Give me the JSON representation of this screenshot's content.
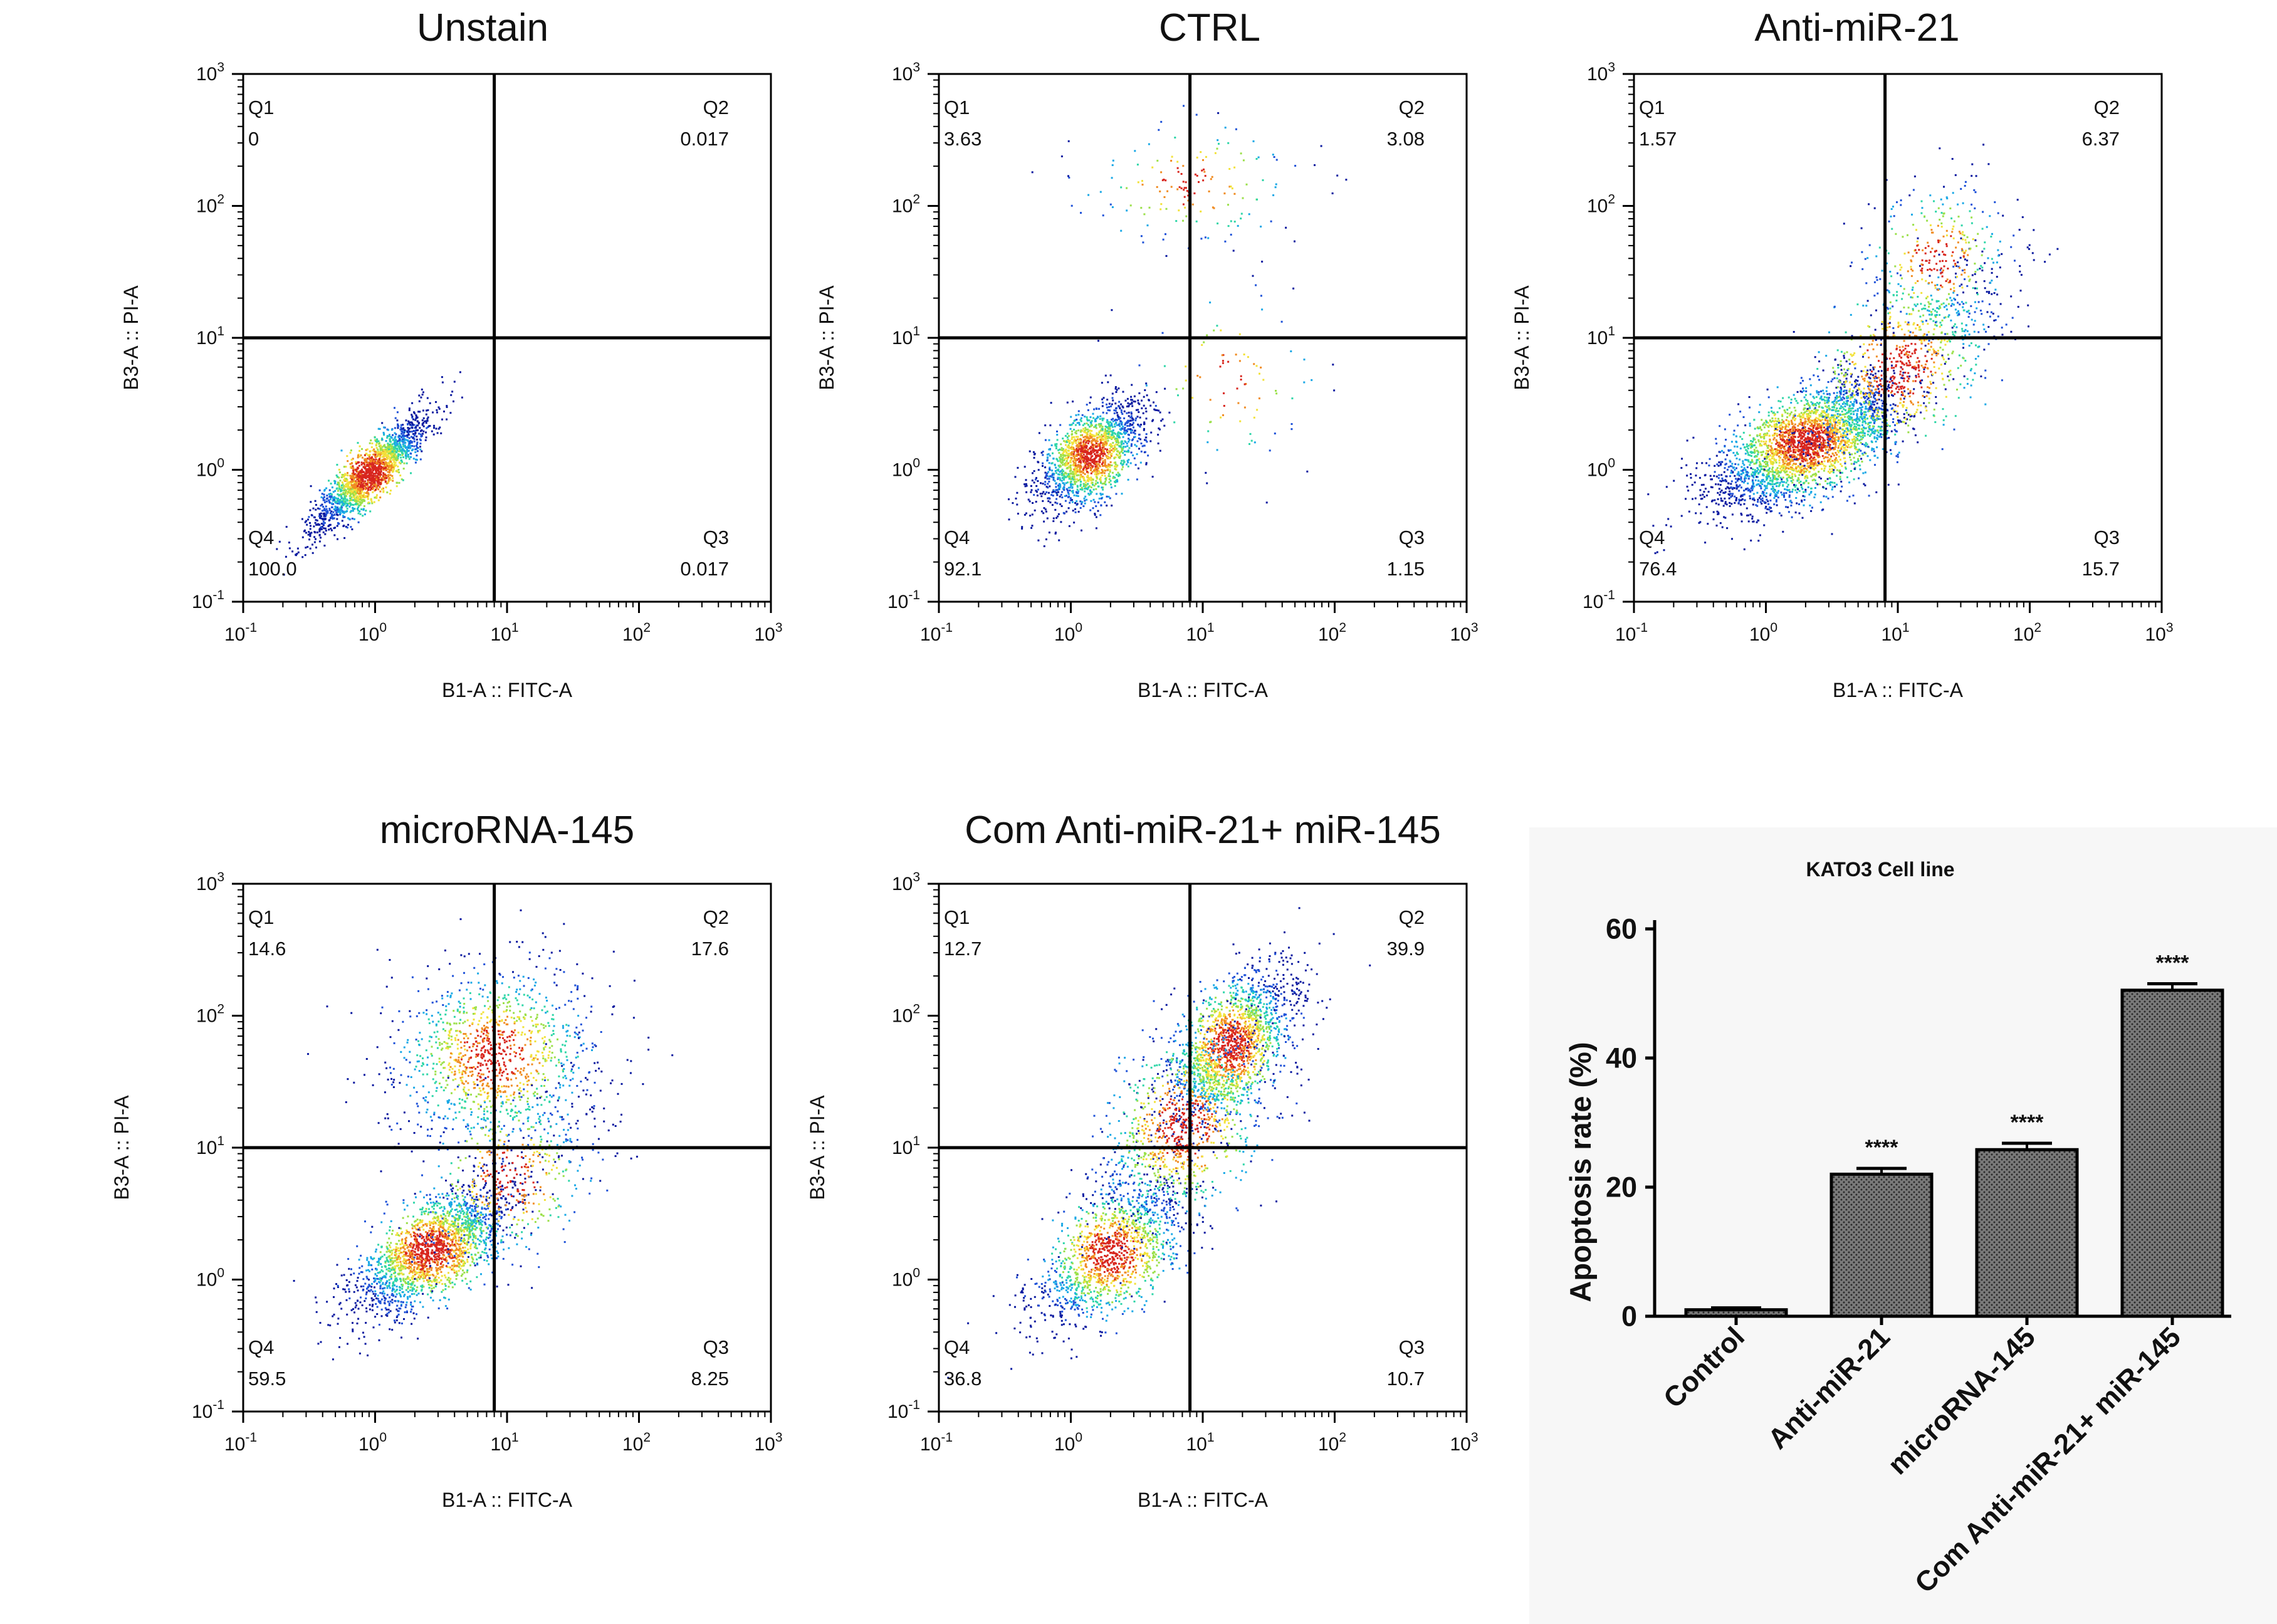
{
  "chart_data": [
    {
      "type": "scatter",
      "title": "Unstain",
      "xlabel": "B1-A :: FITC-A",
      "ylabel": "B3-A :: PI-A",
      "xlim": [
        0.1,
        1000
      ],
      "ylim": [
        0.1,
        1000
      ],
      "scale": "log",
      "gate": {
        "x": 8,
        "y": 10
      },
      "quadrants": [
        {
          "name": "Q1",
          "value": "0",
          "position": "top-left"
        },
        {
          "name": "Q2",
          "value": "0.017",
          "position": "top-right"
        },
        {
          "name": "Q3",
          "value": "0.017",
          "position": "bottom-right"
        },
        {
          "name": "Q4",
          "value": "100.0",
          "position": "bottom-left"
        }
      ],
      "clusters": [
        {
          "center": [
            0.9,
            0.95
          ],
          "spread": [
            0.22,
            0.22
          ],
          "rho": 0.88,
          "count": 1900
        }
      ]
    },
    {
      "type": "scatter",
      "title": "CTRL",
      "xlabel": "B1-A :: FITC-A",
      "ylabel": "B3-A :: PI-A",
      "xlim": [
        0.1,
        1000
      ],
      "ylim": [
        0.1,
        1000
      ],
      "scale": "log",
      "gate": {
        "x": 8,
        "y": 10
      },
      "quadrants": [
        {
          "name": "Q1",
          "value": "3.63",
          "position": "top-left"
        },
        {
          "name": "Q2",
          "value": "3.08",
          "position": "top-right"
        },
        {
          "name": "Q3",
          "value": "1.15",
          "position": "bottom-right"
        },
        {
          "name": "Q4",
          "value": "92.1",
          "position": "bottom-left"
        }
      ],
      "clusters": [
        {
          "center": [
            1.4,
            1.3
          ],
          "spread": [
            0.2,
            0.2
          ],
          "rho": 0.55,
          "count": 1700
        },
        {
          "center": [
            8,
            150
          ],
          "spread": [
            0.45,
            0.25
          ],
          "rho": 0.0,
          "count": 160
        },
        {
          "center": [
            15,
            5
          ],
          "spread": [
            0.35,
            0.35
          ],
          "rho": 0.2,
          "count": 90
        }
      ]
    },
    {
      "type": "scatter",
      "title": "Anti-miR-21",
      "xlabel": "B1-A :: FITC-A",
      "ylabel": "B3-A :: PI-A",
      "xlim": [
        0.1,
        1000
      ],
      "ylim": [
        0.1,
        1000
      ],
      "scale": "log",
      "gate": {
        "x": 8,
        "y": 10
      },
      "quadrants": [
        {
          "name": "Q1",
          "value": "1.57",
          "position": "top-left"
        },
        {
          "name": "Q2",
          "value": "6.37",
          "position": "top-right"
        },
        {
          "name": "Q3",
          "value": "15.7",
          "position": "bottom-right"
        },
        {
          "name": "Q4",
          "value": "76.4",
          "position": "bottom-left"
        }
      ],
      "clusters": [
        {
          "center": [
            2,
            1.6
          ],
          "spread": [
            0.35,
            0.25
          ],
          "rho": 0.65,
          "count": 2800
        },
        {
          "center": [
            10,
            6
          ],
          "spread": [
            0.4,
            0.4
          ],
          "rho": 0.7,
          "count": 900
        },
        {
          "center": [
            20,
            40
          ],
          "spread": [
            0.3,
            0.3
          ],
          "rho": 0.3,
          "count": 350
        }
      ]
    },
    {
      "type": "scatter",
      "title": "microRNA-145",
      "xlabel": "B1-A :: FITC-A",
      "ylabel": "B3-A :: PI-A",
      "xlim": [
        0.1,
        1000
      ],
      "ylim": [
        0.1,
        1000
      ],
      "scale": "log",
      "gate": {
        "x": 8,
        "y": 10
      },
      "quadrants": [
        {
          "name": "Q1",
          "value": "14.6",
          "position": "top-left"
        },
        {
          "name": "Q2",
          "value": "17.6",
          "position": "top-right"
        },
        {
          "name": "Q3",
          "value": "8.25",
          "position": "bottom-right"
        },
        {
          "name": "Q4",
          "value": "59.5",
          "position": "bottom-left"
        }
      ],
      "clusters": [
        {
          "center": [
            2.6,
            1.7
          ],
          "spread": [
            0.3,
            0.25
          ],
          "rho": 0.7,
          "count": 2000
        },
        {
          "center": [
            8,
            50
          ],
          "spread": [
            0.4,
            0.35
          ],
          "rho": 0.1,
          "count": 1200
        },
        {
          "center": [
            10,
            6
          ],
          "spread": [
            0.35,
            0.35
          ],
          "rho": 0.5,
          "count": 500
        }
      ]
    },
    {
      "type": "scatter",
      "title": "Com Anti-miR-21+ miR-145",
      "xlabel": "B1-A :: FITC-A",
      "ylabel": "B3-A :: PI-A",
      "xlim": [
        0.1,
        1000
      ],
      "ylim": [
        0.1,
        1000
      ],
      "scale": "log",
      "gate": {
        "x": 8,
        "y": 10
      },
      "quadrants": [
        {
          "name": "Q1",
          "value": "12.7",
          "position": "top-left"
        },
        {
          "name": "Q2",
          "value": "39.9",
          "position": "top-right"
        },
        {
          "name": "Q3",
          "value": "10.7",
          "position": "bottom-right"
        },
        {
          "name": "Q4",
          "value": "36.8",
          "position": "bottom-left"
        }
      ],
      "clusters": [
        {
          "center": [
            2,
            1.6
          ],
          "spread": [
            0.3,
            0.28
          ],
          "rho": 0.6,
          "count": 1400
        },
        {
          "center": [
            16,
            60
          ],
          "spread": [
            0.25,
            0.3
          ],
          "rho": 0.6,
          "count": 1700
        },
        {
          "center": [
            7,
            15
          ],
          "spread": [
            0.35,
            0.4
          ],
          "rho": 0.5,
          "count": 1000
        }
      ]
    },
    {
      "type": "bar",
      "title": "KATO3 Cell line",
      "ylabel": "Apoptosis rate (%)",
      "xlabel": "",
      "ylim": [
        0,
        60
      ],
      "yticks": [
        0,
        20,
        40,
        60
      ],
      "categories": [
        "Control",
        "Anti-miR-21",
        "microRNA-145",
        "Com Anti-miR-21+ miR-145"
      ],
      "values": [
        1,
        22,
        25.8,
        50.5
      ],
      "errors": [
        0.3,
        0.9,
        1.0,
        1.0
      ],
      "significance": [
        "",
        "****",
        "****",
        "****"
      ]
    }
  ],
  "colors": {
    "density": [
      "#0a1aa0",
      "#1e52d8",
      "#19a8e6",
      "#2fd6a8",
      "#9be04a",
      "#f2e23a",
      "#f08c22",
      "#d8261e"
    ],
    "bar_fill": "#6e6e6e",
    "bar_pattern": "#2a2a2a",
    "axis": "#000000",
    "panel_background": "#f7f7f7"
  }
}
